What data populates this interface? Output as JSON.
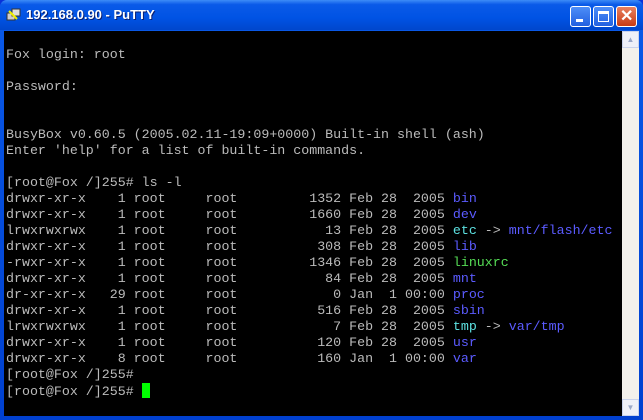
{
  "window": {
    "title": "192.168.0.90 - PuTTY"
  },
  "colors": {
    "text": "#bbbbbb",
    "dir": "#5b5bff",
    "link": "#5ce0e0",
    "exec": "#55dd55",
    "cursor": "#00ff00"
  },
  "terminal": {
    "lines": [
      [
        {
          "t": ""
        }
      ],
      [
        {
          "t": "Fox login: root"
        }
      ],
      [
        {
          "t": ""
        }
      ],
      [
        {
          "t": "Password:"
        }
      ],
      [
        {
          "t": ""
        }
      ],
      [
        {
          "t": ""
        }
      ],
      [
        {
          "t": "BusyBox v0.60.5 (2005.02.11-19:09+0000) Built-in shell (ash)"
        }
      ],
      [
        {
          "t": "Enter 'help' for a list of built-in commands."
        }
      ],
      [
        {
          "t": ""
        }
      ],
      [
        {
          "t": "[root@Fox /]255# ls -l"
        }
      ],
      [
        {
          "t": "drwxr-xr-x    1 root     root         1352 Feb 28  2005 "
        },
        {
          "t": "bin",
          "c": "dir"
        }
      ],
      [
        {
          "t": "drwxr-xr-x    1 root     root         1660 Feb 28  2005 "
        },
        {
          "t": "dev",
          "c": "dir"
        }
      ],
      [
        {
          "t": "lrwxrwxrwx    1 root     root           13 Feb 28  2005 "
        },
        {
          "t": "etc",
          "c": "link"
        },
        {
          "t": " -> "
        },
        {
          "t": "mnt/flash/etc",
          "c": "dir"
        }
      ],
      [
        {
          "t": "drwxr-xr-x    1 root     root          308 Feb 28  2005 "
        },
        {
          "t": "lib",
          "c": "dir"
        }
      ],
      [
        {
          "t": "-rwxr-xr-x    1 root     root         1346 Feb 28  2005 "
        },
        {
          "t": "linuxrc",
          "c": "exec"
        }
      ],
      [
        {
          "t": "drwxr-xr-x    1 root     root           84 Feb 28  2005 "
        },
        {
          "t": "mnt",
          "c": "dir"
        }
      ],
      [
        {
          "t": "dr-xr-xr-x   29 root     root            0 Jan  1 00:00 "
        },
        {
          "t": "proc",
          "c": "dir"
        }
      ],
      [
        {
          "t": "drwxr-xr-x    1 root     root          516 Feb 28  2005 "
        },
        {
          "t": "sbin",
          "c": "dir"
        }
      ],
      [
        {
          "t": "lrwxrwxrwx    1 root     root            7 Feb 28  2005 "
        },
        {
          "t": "tmp",
          "c": "link"
        },
        {
          "t": " -> "
        },
        {
          "t": "var/tmp",
          "c": "dir"
        }
      ],
      [
        {
          "t": "drwxr-xr-x    1 root     root          120 Feb 28  2005 "
        },
        {
          "t": "usr",
          "c": "dir"
        }
      ],
      [
        {
          "t": "drwxr-xr-x    8 root     root          160 Jan  1 00:00 "
        },
        {
          "t": "var",
          "c": "dir"
        }
      ],
      [
        {
          "t": "[root@Fox /]255#"
        }
      ],
      [
        {
          "t": "[root@Fox /]255# "
        }
      ]
    ]
  }
}
